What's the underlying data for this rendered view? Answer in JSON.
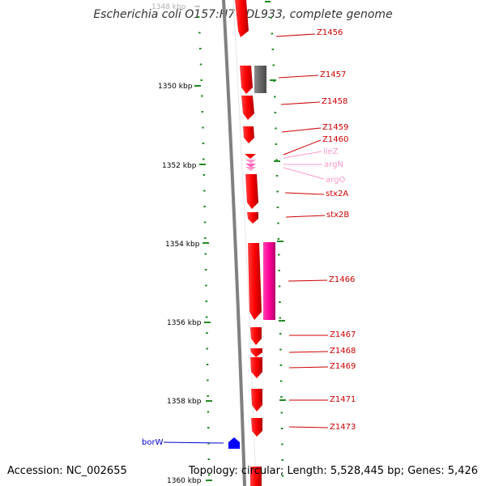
{
  "title": "Escherichia coli O157:H7 EDL933, complete genome",
  "footer": {
    "accession": "Accession: NC_002655",
    "topology": "Topology: circular;",
    "length": "Length: 5,528,445 bp;",
    "genes": "Genes: 5,426"
  },
  "colors": {
    "forward_gene": "#ff0000",
    "reverse_gene": "#0000ff",
    "rna_gene": "#ff99cc",
    "pseudo_gene": "#666666",
    "mobile_element": "#ff0099",
    "tick": "#228b22",
    "backbone": "#808080"
  },
  "ticks": [
    {
      "label": "1348 kbp"
    },
    {
      "label": "1350 kbp"
    },
    {
      "label": "1352 kbp"
    },
    {
      "label": "1354 kbp"
    },
    {
      "label": "1356 kbp"
    },
    {
      "label": "1358 kbp"
    },
    {
      "label": "1360 kbp"
    }
  ],
  "genes": [
    {
      "name": "Z1456",
      "type": "forward"
    },
    {
      "name": "Z1457",
      "type": "forward"
    },
    {
      "name": "Z1458",
      "type": "forward"
    },
    {
      "name": "Z1459",
      "type": "forward"
    },
    {
      "name": "Z1460",
      "type": "forward"
    },
    {
      "name": "ileZ",
      "type": "rna"
    },
    {
      "name": "argN",
      "type": "rna"
    },
    {
      "name": "argO",
      "type": "rna"
    },
    {
      "name": "stx2A",
      "type": "forward"
    },
    {
      "name": "stx2B",
      "type": "forward"
    },
    {
      "name": "Z1466",
      "type": "forward"
    },
    {
      "name": "Z1467",
      "type": "forward"
    },
    {
      "name": "Z1468",
      "type": "forward"
    },
    {
      "name": "Z1469",
      "type": "forward"
    },
    {
      "name": "Z1471",
      "type": "forward"
    },
    {
      "name": "Z1473",
      "type": "forward"
    },
    {
      "name": "borW",
      "type": "reverse"
    }
  ]
}
